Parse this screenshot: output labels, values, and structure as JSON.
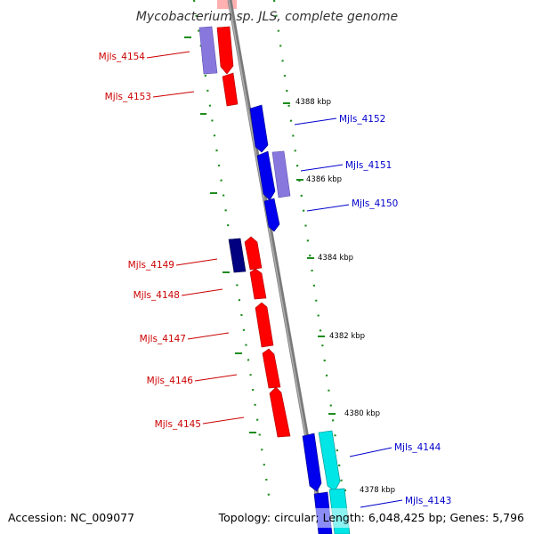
{
  "title": "Mycobacterium sp. JLS, complete genome",
  "footer": {
    "accession": "Accession: NC_009077",
    "stats": "Topology: circular; Length: 6,048,425 bp; Genes: 5,796"
  },
  "colors": {
    "background": "#ffffff",
    "backbone": "#808080",
    "tick": "#1e8c1e",
    "cds_red": "#ff0000",
    "cds_blue": "#0000ee",
    "cds_lavender": "#8878dd",
    "cds_navy": "#000080",
    "cds_cyan": "#00e5e5",
    "label_red": "#cc0000",
    "label_blue": "#0000cc"
  },
  "scale_labels": [
    "4388 kbp",
    "4386 kbp",
    "4384 kbp",
    "4382 kbp",
    "4380 kbp",
    "4378 kbp"
  ],
  "genes": {
    "left": [
      "Mjls_4154",
      "Mjls_4153",
      "Mjls_4149",
      "Mjls_4148",
      "Mjls_4147",
      "Mjls_4146",
      "Mjls_4145"
    ],
    "right": [
      "Mjls_4152",
      "Mjls_4151",
      "Mjls_4150",
      "Mjls_4144",
      "Mjls_4143"
    ]
  }
}
